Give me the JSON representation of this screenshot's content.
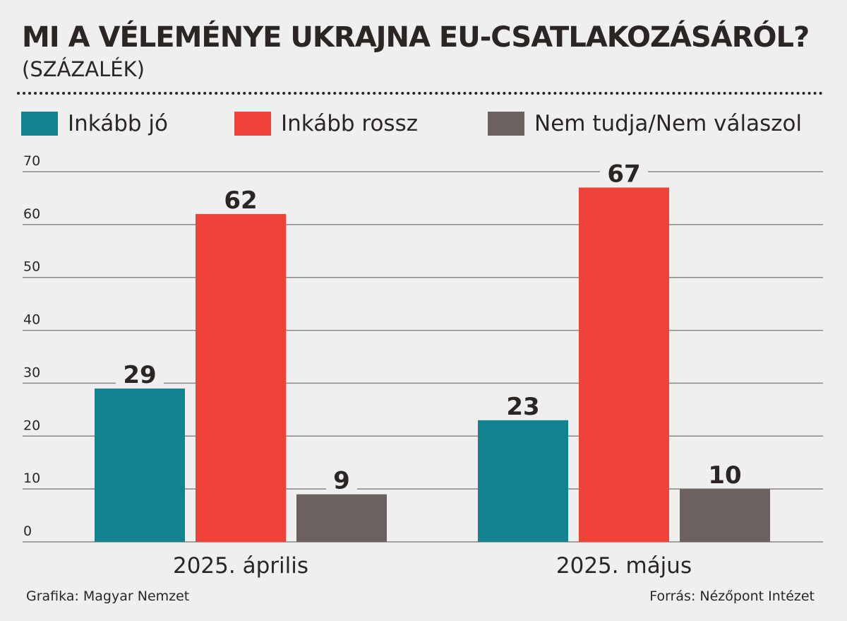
{
  "title": "MI A VÉLEMÉNYE UKRAJNA EU-CSATLAKOZÁSÁRÓL?",
  "subtitle": "(SZÁZALÉK)",
  "legend": [
    {
      "label": "Inkább jó",
      "color": "#148390"
    },
    {
      "label": "Inkább rossz",
      "color": "#ef4239"
    },
    {
      "label": "Nem tudja/Nem válaszol",
      "color": "#6b625f"
    }
  ],
  "chart_data": {
    "type": "bar",
    "categories": [
      "2025. április",
      "2025. május"
    ],
    "series": [
      {
        "name": "Inkább jó",
        "values": [
          29,
          23
        ],
        "color": "#148390"
      },
      {
        "name": "Inkább rossz",
        "values": [
          62,
          67
        ],
        "color": "#ef4239"
      },
      {
        "name": "Nem tudja/Nem válaszol",
        "values": [
          9,
          10
        ],
        "color": "#6b625f"
      }
    ],
    "ylim": [
      0,
      70
    ],
    "yticks": [
      0,
      10,
      20,
      30,
      40,
      50,
      60,
      70
    ],
    "grid": true,
    "legend_position": "top",
    "data_labels": true
  },
  "footer": {
    "credit": "Grafika: Magyar Nemzet",
    "source": "Forrás: Nézőpont Intézet"
  }
}
